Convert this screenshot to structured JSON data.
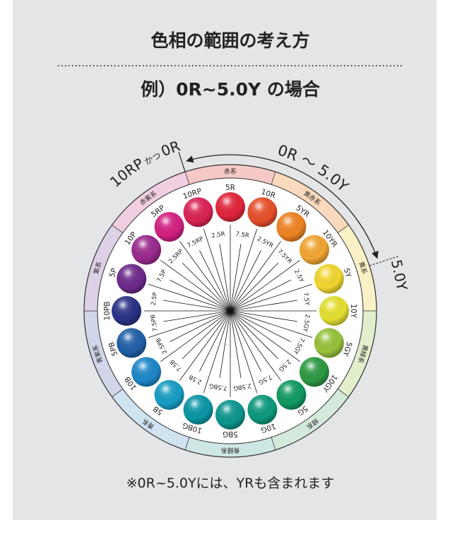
{
  "title": "色相の範囲の考え方",
  "subtitle": "例）0R~5.0Y の場合",
  "start_label": {
    "main": "10RP",
    "join": "かつ",
    "end": "0R"
  },
  "range_label": "0R 〜 5.0Y",
  "end_label": "5.0Y",
  "groups": [
    {
      "label": "赤系",
      "color": "#f6c9c6"
    },
    {
      "label": "黄赤系",
      "color": "#fbd9bc"
    },
    {
      "label": "黄系",
      "color": "#faf2c6"
    },
    {
      "label": "黄緑系",
      "color": "#e3eecd"
    },
    {
      "label": "緑系",
      "color": "#d3eadb"
    },
    {
      "label": "青緑系",
      "color": "#cde7e5"
    },
    {
      "label": "青系",
      "color": "#cfe3f1"
    },
    {
      "label": "青紫系",
      "color": "#d2d6ea"
    },
    {
      "label": "紫系",
      "color": "#ddd1e8"
    },
    {
      "label": "赤紫系",
      "color": "#f2cfe0"
    }
  ],
  "hues": [
    {
      "label": "5R",
      "color": "#e2263c"
    },
    {
      "label": "10R",
      "color": "#e8502b"
    },
    {
      "label": "5YR",
      "color": "#ee8424"
    },
    {
      "label": "10YR",
      "color": "#f2a632"
    },
    {
      "label": "5Y",
      "color": "#f2d730"
    },
    {
      "label": "10Y",
      "color": "#e6e031"
    },
    {
      "label": "5GY",
      "color": "#98c33b"
    },
    {
      "label": "10GY",
      "color": "#2e9a44"
    },
    {
      "label": "5G",
      "color": "#129a62"
    },
    {
      "label": "10G",
      "color": "#0d9a7e"
    },
    {
      "label": "5BG",
      "color": "#0b968f"
    },
    {
      "label": "10BG",
      "color": "#0b97a6"
    },
    {
      "label": "5B",
      "color": "#179dc4"
    },
    {
      "label": "10B",
      "color": "#1e88c8"
    },
    {
      "label": "5PB",
      "color": "#2160a8"
    },
    {
      "label": "10PB",
      "color": "#2b3387"
    },
    {
      "label": "5P",
      "color": "#6e2a8c"
    },
    {
      "label": "10P",
      "color": "#9b2a8e"
    },
    {
      "label": "5RP",
      "color": "#d32082"
    },
    {
      "label": "10RP",
      "color": "#dc2355"
    }
  ],
  "half_hues": [
    "2.5R",
    "7.5R",
    "2.5YR",
    "7.5YR",
    "2.5Y",
    "7.5Y",
    "2.5GY",
    "7.5GY",
    "2.5G",
    "7.5G",
    "2.5BG",
    "7.5BG",
    "2.5B",
    "7.5B",
    "2.5PB",
    "7.5PB",
    "2.5P",
    "7.5P",
    "2.5RP",
    "7.5RP"
  ],
  "note": "※0R~5.0Yには、YRも含まれます"
}
